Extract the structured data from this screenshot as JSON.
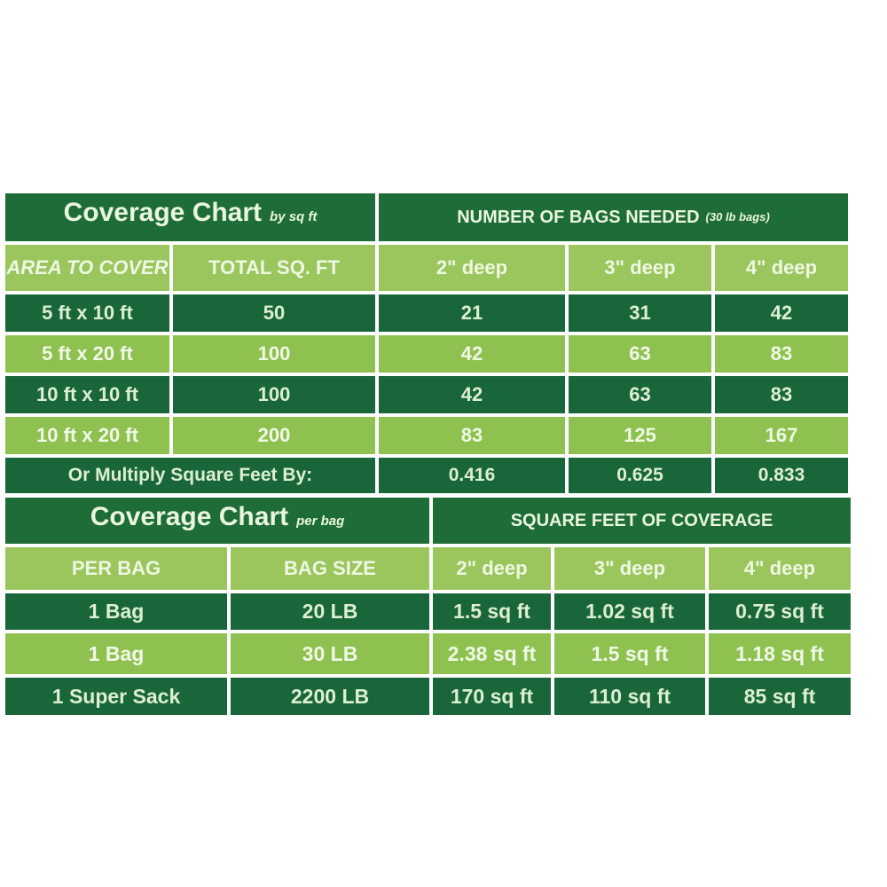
{
  "colors": {
    "header_dark_green": "#1e6c38",
    "row_dark_green": "#186639",
    "row_light_green": "#8fc150",
    "header_light_green": "#9bc65e",
    "text_pale_green": "#eaf6df",
    "background": "#ffffff"
  },
  "table1": {
    "title": "Coverage Chart",
    "title_note": "by sq ft",
    "span_header": "NUMBER OF BAGS NEEDED",
    "span_header_note": "(30 lb bags)",
    "columns": [
      "AREA TO COVER",
      "TOTAL SQ. FT",
      "2\" deep",
      "3\" deep",
      "4\" deep"
    ],
    "rows": [
      {
        "cells": [
          "5 ft x 10 ft",
          "50",
          "21",
          "31",
          "42"
        ]
      },
      {
        "cells": [
          "5 ft x 20 ft",
          "100",
          "42",
          "63",
          "83"
        ]
      },
      {
        "cells": [
          "10 ft x 10 ft",
          "100",
          "42",
          "63",
          "83"
        ]
      },
      {
        "cells": [
          "10 ft x 20 ft",
          "200",
          "83",
          "125",
          "167"
        ]
      }
    ],
    "footer": {
      "label": "Or Multiply Square Feet By:",
      "values": [
        "0.416",
        "0.625",
        "0.833"
      ]
    }
  },
  "table2": {
    "title": "Coverage Chart",
    "title_note": "per bag",
    "span_header": "SQUARE FEET OF COVERAGE",
    "columns": [
      "PER BAG",
      "BAG SIZE",
      "2\" deep",
      "3\" deep",
      "4\" deep"
    ],
    "rows": [
      {
        "cells": [
          "1 Bag",
          "20 LB",
          "1.5 sq ft",
          "1.02 sq ft",
          "0.75 sq ft"
        ]
      },
      {
        "cells": [
          "1 Bag",
          "30 LB",
          "2.38 sq ft",
          "1.5 sq ft",
          "1.18 sq ft"
        ]
      },
      {
        "cells": [
          "1 Super Sack",
          "2200 LB",
          "170 sq ft",
          "110 sq ft",
          "85 sq ft"
        ]
      }
    ]
  },
  "chart_data": [
    {
      "type": "table",
      "title": "Coverage Chart by sq ft",
      "subtitle": "NUMBER OF BAGS NEEDED (30 lb bags)",
      "columns": [
        "AREA TO COVER",
        "TOTAL SQ. FT",
        "2\" deep",
        "3\" deep",
        "4\" deep"
      ],
      "rows": [
        [
          "5 ft x 10 ft",
          50,
          21,
          31,
          42
        ],
        [
          "5 ft x 20 ft",
          100,
          42,
          63,
          83
        ],
        [
          "10 ft x 10 ft",
          100,
          42,
          63,
          83
        ],
        [
          "10 ft x 20 ft",
          200,
          83,
          125,
          167
        ],
        [
          "Or Multiply Square Feet By:",
          null,
          0.416,
          0.625,
          0.833
        ]
      ]
    },
    {
      "type": "table",
      "title": "Coverage Chart per bag",
      "subtitle": "SQUARE FEET OF COVERAGE",
      "columns": [
        "PER BAG",
        "BAG SIZE",
        "2\" deep",
        "3\" deep",
        "4\" deep"
      ],
      "rows": [
        [
          "1 Bag",
          "20 LB",
          "1.5 sq ft",
          "1.02 sq ft",
          "0.75 sq ft"
        ],
        [
          "1 Bag",
          "30 LB",
          "2.38 sq ft",
          "1.5 sq ft",
          "1.18 sq ft"
        ],
        [
          "1 Super Sack",
          "2200 LB",
          "170 sq ft",
          "110 sq ft",
          "85 sq ft"
        ]
      ]
    }
  ]
}
